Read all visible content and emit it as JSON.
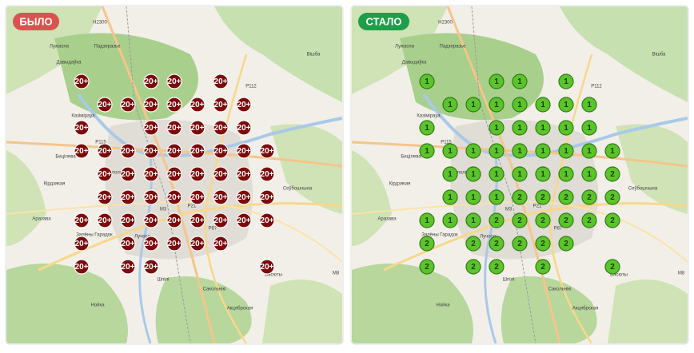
{
  "before": {
    "badge": "БЫЛО",
    "rows": [
      [
        "20+",
        null,
        null,
        "20+",
        "20+",
        null,
        "20+",
        null,
        null
      ],
      [
        null,
        "20+",
        "20+",
        "20+",
        "20+",
        "20+",
        "20+",
        "20+",
        null
      ],
      [
        "20+",
        null,
        null,
        "20+",
        "20+",
        "20+",
        "20+",
        "20+",
        null
      ],
      [
        "20+",
        "20+",
        "20+",
        "20+",
        "20+",
        "20+",
        "20+",
        "20+",
        "20+"
      ],
      [
        null,
        "20+",
        "20+",
        "20+",
        "20+",
        "20+",
        "20+",
        "20+",
        "20+"
      ],
      [
        null,
        "20+",
        "20+",
        "20+",
        "20+",
        "20+",
        "20+",
        "20+",
        "20+"
      ],
      [
        "20+",
        "20+",
        "20+",
        "20+",
        "20+",
        "20+",
        "20+",
        "20+",
        "20+"
      ],
      [
        "20+",
        null,
        "20+",
        "20+",
        "20+",
        "20+",
        "20+",
        null,
        null
      ],
      [
        "20+",
        null,
        "20+",
        "20+",
        null,
        null,
        null,
        null,
        "20+"
      ]
    ]
  },
  "after": {
    "badge": "СТАЛО",
    "rows": [
      [
        "1",
        null,
        null,
        "1",
        "1",
        null,
        "1",
        null,
        null
      ],
      [
        null,
        "1",
        "1",
        "1",
        "1",
        "1",
        "1",
        "1",
        null
      ],
      [
        "1",
        null,
        null,
        "1",
        "1",
        "1",
        "1",
        "1",
        null
      ],
      [
        "1",
        "1",
        "1",
        "1",
        "1",
        "1",
        "1",
        "1",
        "1"
      ],
      [
        null,
        "1",
        "1",
        "1",
        "1",
        "1",
        "1",
        "1",
        "2"
      ],
      [
        null,
        "1",
        "1",
        "1",
        "2",
        "2",
        "2",
        "2",
        "2"
      ],
      [
        "1",
        "1",
        "1",
        "2",
        "2",
        "2",
        "2",
        "2",
        "2"
      ],
      [
        "2",
        null,
        "2",
        "2",
        "2",
        "2",
        "2",
        null,
        null
      ],
      [
        "2",
        null,
        "2",
        "2",
        null,
        "2",
        null,
        null,
        "2"
      ]
    ]
  },
  "map_labels": [
    "Н2300",
    "Лужасна",
    "Падзеразье",
    "Вішба",
    "Давыдаўка",
    "Р112",
    "Казімірауа",
    "Р115",
    "Бицілева",
    "Пяты полк",
    "Кірдзякая",
    "Сеўбошчына",
    "Аразава",
    "М3",
    "Р21",
    "Р87",
    "Зялёны Гарадок",
    "Лучосо",
    "Шпілі",
    "М8",
    "Васюты",
    "Сакольнікі",
    "Нойка",
    "Акцябрская"
  ]
}
